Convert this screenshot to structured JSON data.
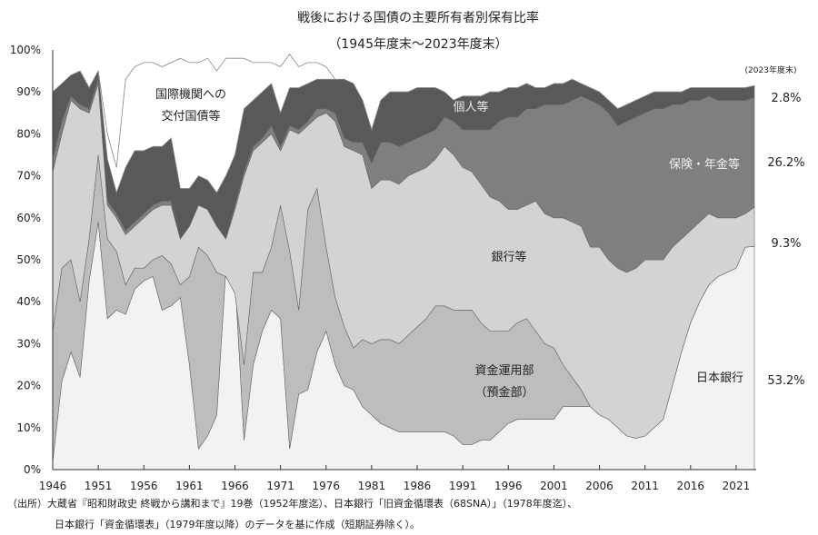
{
  "chart_data": {
    "type": "area",
    "stacked": true,
    "title": "戦後における国債の主要所有者別保有比率",
    "subtitle": "（1945年度末～2023年度末）",
    "xlabel": "",
    "ylabel": "",
    "ylim": [
      0,
      100
    ],
    "y_ticks": [
      "0%",
      "10%",
      "20%",
      "30%",
      "40%",
      "50%",
      "60%",
      "70%",
      "80%",
      "90%",
      "100%"
    ],
    "x_ticks": [
      "1946",
      "1951",
      "1956",
      "1961",
      "1966",
      "1971",
      "1976",
      "1981",
      "1986",
      "1991",
      "1996",
      "2001",
      "2006",
      "2011",
      "2016",
      "2021"
    ],
    "x_start": 1946,
    "x_end": 2023,
    "value_note": "stack_top = cumulative top of each layer (%)",
    "series": [
      {
        "name": "日本銀行",
        "color": "#f2f2f2",
        "stack_top": [
          2,
          21,
          28,
          22,
          45,
          59,
          36,
          38,
          37,
          43,
          45,
          46,
          38,
          39,
          41,
          25,
          5,
          8,
          13,
          48,
          46,
          7,
          25,
          33,
          38,
          36,
          5,
          18,
          19,
          28,
          33,
          25,
          20,
          19,
          15,
          13,
          11,
          10,
          9,
          9,
          9,
          9,
          9,
          9,
          8,
          6,
          6,
          7,
          7,
          9,
          11,
          12,
          12,
          12,
          12,
          12,
          15,
          15,
          15,
          15,
          13,
          12,
          10,
          8,
          7.5,
          8,
          10,
          12,
          20,
          28,
          35,
          40,
          44,
          46,
          47,
          48,
          53,
          53.2
        ]
      },
      {
        "name": "資金運用部（預金部）",
        "color": "#bdbdbd",
        "stack_top": [
          33,
          48,
          50,
          40,
          55,
          75,
          55,
          52,
          44,
          48,
          48,
          50,
          51,
          49,
          44,
          46,
          53,
          51,
          47,
          46,
          42,
          25,
          47,
          47,
          53,
          63,
          52,
          38,
          62,
          67,
          53,
          41,
          34,
          29,
          31,
          30,
          31,
          31,
          30,
          32,
          34,
          36,
          39,
          39,
          38,
          38,
          38,
          35,
          33,
          33,
          33,
          35,
          36,
          33,
          30,
          29,
          25,
          22,
          19,
          15,
          13,
          12,
          10,
          8,
          7.5,
          8,
          10,
          12,
          20,
          28,
          35,
          40,
          44,
          46,
          47,
          48,
          53,
          53.2
        ]
      },
      {
        "name": "銀行等",
        "color": "#d3d3d3",
        "stack_top": [
          71,
          80,
          88,
          86,
          85,
          92,
          63,
          60,
          56,
          58,
          60,
          62,
          63,
          63,
          55,
          58,
          63,
          62,
          58,
          55,
          62,
          70,
          76,
          78,
          80,
          76,
          81,
          80,
          82,
          84,
          85,
          83,
          77,
          76,
          75,
          67,
          69,
          69,
          68,
          70,
          71,
          72,
          74,
          77,
          75,
          72,
          71,
          68,
          65,
          64,
          62,
          62,
          63,
          64,
          61,
          60,
          60,
          59,
          58,
          53,
          53,
          50,
          48,
          47,
          48,
          50,
          50,
          50,
          53,
          55,
          57,
          59,
          61,
          60,
          60,
          60,
          61,
          62.5
        ]
      },
      {
        "name": "保険・年金等",
        "color": "#7f7f7f",
        "stack_top": [
          74,
          83,
          89,
          87,
          86,
          93,
          64,
          61,
          57,
          59,
          61,
          63,
          64,
          64,
          55,
          58,
          63,
          62,
          58,
          55,
          63,
          71,
          77,
          79,
          82,
          77,
          82,
          81,
          83,
          86,
          86,
          85,
          79,
          78,
          78,
          73,
          78,
          78,
          77,
          78,
          79,
          80,
          81,
          84,
          83,
          81,
          81,
          81,
          81,
          83,
          84,
          84,
          86,
          86,
          87,
          87,
          87,
          88,
          89,
          88,
          87,
          85,
          82,
          83,
          84,
          85,
          86,
          86,
          87,
          87,
          88,
          88,
          89,
          88,
          88,
          88,
          88,
          88.7
        ]
      },
      {
        "name": "個人等",
        "color": "#595959",
        "stack_top": [
          90,
          92,
          94,
          95,
          91,
          95,
          74,
          66,
          72,
          76,
          76,
          77,
          77,
          79,
          67,
          67,
          70,
          69,
          66,
          70,
          75,
          86,
          88,
          90,
          92,
          85,
          91,
          91,
          92,
          93,
          93,
          93,
          93,
          92,
          88,
          81,
          88,
          90,
          90,
          90,
          91,
          91,
          91,
          90,
          88,
          89,
          89,
          89,
          90,
          90,
          91,
          91,
          92,
          91,
          91,
          92,
          92,
          93,
          92,
          91,
          90,
          88,
          86,
          87,
          88,
          89,
          90,
          90,
          90,
          90,
          91,
          91,
          91,
          91,
          91,
          91,
          91,
          91.5
        ]
      },
      {
        "name": "国際機関への交付国債等",
        "color": "#ffffff",
        "stack_top": [
          90,
          92,
          94,
          95,
          91,
          95,
          80,
          72,
          93,
          96,
          97,
          97,
          96,
          97,
          98,
          97,
          97,
          98,
          95,
          98,
          98,
          98,
          97,
          97,
          97,
          96,
          99,
          96,
          97,
          97,
          96,
          93,
          93,
          92,
          88,
          81,
          88,
          90,
          90,
          90,
          91,
          91,
          91,
          90,
          88,
          89,
          89,
          89,
          90,
          90,
          91,
          91,
          92,
          91,
          91,
          92,
          92,
          93,
          92,
          91,
          90,
          88,
          86,
          87,
          88,
          89,
          90,
          90,
          90,
          90,
          91,
          91,
          91,
          91,
          91,
          91,
          91,
          91.5
        ]
      }
    ],
    "area_labels": {
      "intl_1": "国際機関への",
      "intl_2": "交付国債等",
      "individual": "個人等",
      "insurance": "保険・年金等",
      "bank": "銀行等",
      "trust_1": "資金運用部",
      "trust_2": "（預金部）",
      "boj": "日本銀行"
    },
    "end_labels": {
      "header": "(2023年度末)",
      "individual": "2.8%",
      "insurance": "26.2%",
      "bank": "9.3%",
      "boj": "53.2%"
    }
  },
  "footer": {
    "line1": "（出所）大蔵省『昭和財政史 終戦から講和まで』19巻（1952年度迄）、日本銀行「旧資金循環表（68SNA）」（1978年度迄）、",
    "line2": "日本銀行「資金循環表」（1979年度以降）のデータを基に作成（短期証券除く）。"
  }
}
